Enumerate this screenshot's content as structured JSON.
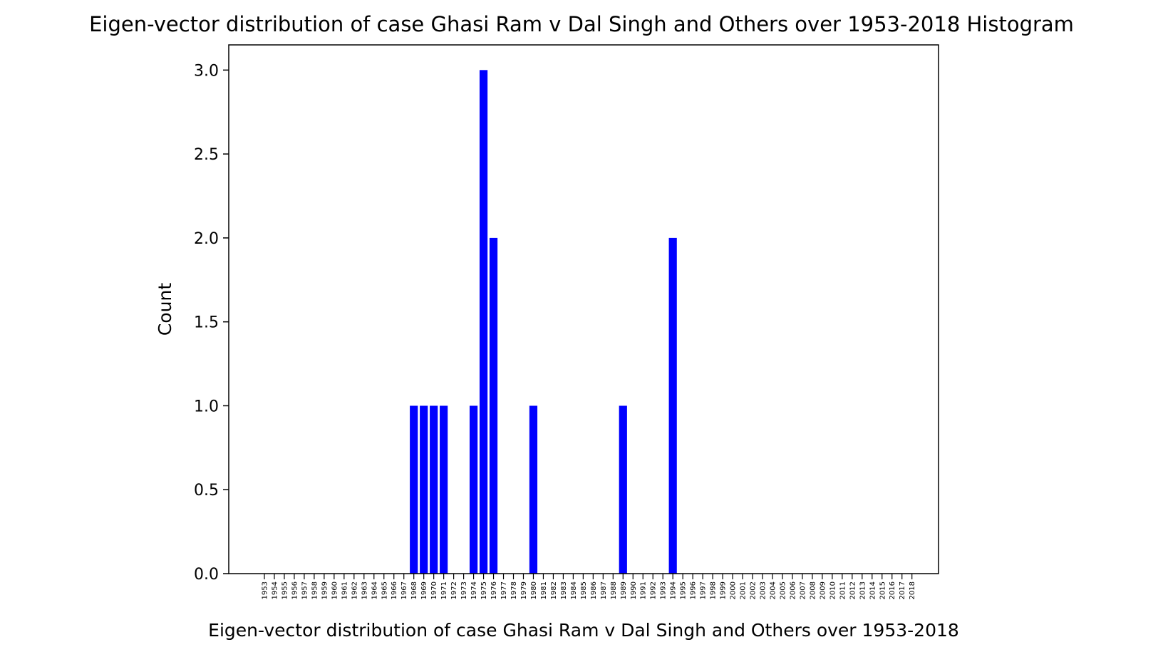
{
  "chart_data": {
    "type": "bar",
    "title": "Eigen-vector distribution of case Ghasi Ram v Dal Singh and Others over 1953-2018 Histogram",
    "xlabel": "Eigen-vector distribution of case Ghasi Ram v Dal Singh and Others over 1953-2018",
    "ylabel": "Count",
    "ylim": [
      0,
      3.15
    ],
    "yticks": [
      "0.0",
      "0.5",
      "1.0",
      "1.5",
      "2.0",
      "2.5",
      "3.0"
    ],
    "grid": false,
    "bar_color": "#0000ff",
    "categories": [
      "1953",
      "1954",
      "1955",
      "1956",
      "1957",
      "1958",
      "1959",
      "1960",
      "1961",
      "1962",
      "1963",
      "1964",
      "1965",
      "1966",
      "1967",
      "1968",
      "1969",
      "1970",
      "1971",
      "1972",
      "1973",
      "1974",
      "1975",
      "1976",
      "1977",
      "1978",
      "1979",
      "1980",
      "1981",
      "1982",
      "1983",
      "1984",
      "1985",
      "1986",
      "1987",
      "1988",
      "1989",
      "1990",
      "1991",
      "1992",
      "1993",
      "1994",
      "1995",
      "1996",
      "1997",
      "1998",
      "1999",
      "2000",
      "2001",
      "2002",
      "2003",
      "2004",
      "2005",
      "2006",
      "2007",
      "2008",
      "2009",
      "2010",
      "2011",
      "2012",
      "2013",
      "2014",
      "2015",
      "2016",
      "2017",
      "2018"
    ],
    "values": [
      0,
      0,
      0,
      0,
      0,
      0,
      0,
      0,
      0,
      0,
      0,
      0,
      0,
      0,
      0,
      1,
      1,
      1,
      1,
      0,
      0,
      1,
      3,
      2,
      0,
      0,
      0,
      1,
      0,
      0,
      0,
      0,
      0,
      0,
      0,
      0,
      1,
      0,
      0,
      0,
      0,
      2,
      0,
      0,
      0,
      0,
      0,
      0,
      0,
      0,
      0,
      0,
      0,
      0,
      0,
      0,
      0,
      0,
      0,
      0,
      0,
      0,
      0,
      0,
      0,
      0
    ]
  }
}
